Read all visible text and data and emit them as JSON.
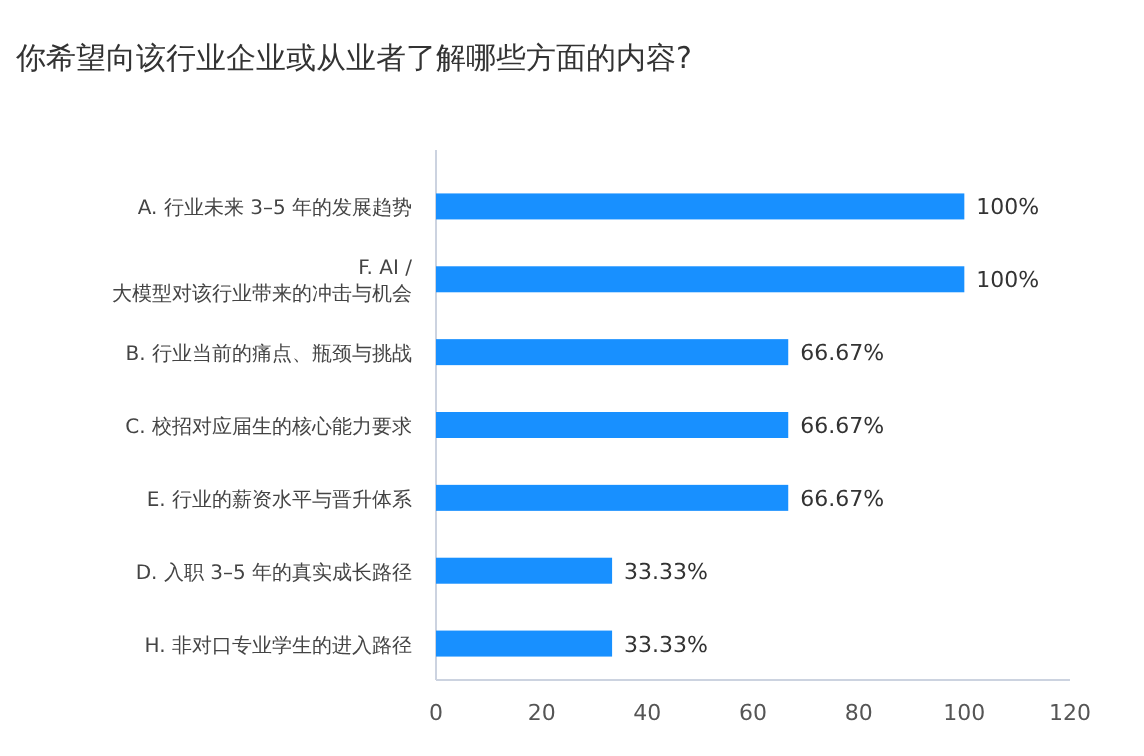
{
  "chart_data": {
    "type": "bar",
    "orientation": "horizontal",
    "title": "你希望向该行业企业或从业者了解哪些方面的内容?",
    "categories": [
      "A. 行业未来 3–5 年的发展趋势",
      "F. AI /\n大模型对该行业带来的冲击与机会",
      "B. 行业当前的痛点、瓶颈与挑战",
      "C. 校招对应届生的核心能力要求",
      "E. 行业的薪资水平与晋升体系",
      "D. 入职 3–5 年的真实成长路径",
      "H. 非对口专业学生的进入路径"
    ],
    "values": [
      100,
      100,
      66.67,
      66.67,
      66.67,
      33.33,
      33.33
    ],
    "value_labels": [
      "100%",
      "100%",
      "66.67%",
      "66.67%",
      "66.67%",
      "33.33%",
      "33.33%"
    ],
    "color": "#1890ff",
    "xlim": [
      0,
      120
    ],
    "xticks": [
      0,
      20,
      40,
      60,
      80,
      100,
      120
    ],
    "grid": false
  }
}
